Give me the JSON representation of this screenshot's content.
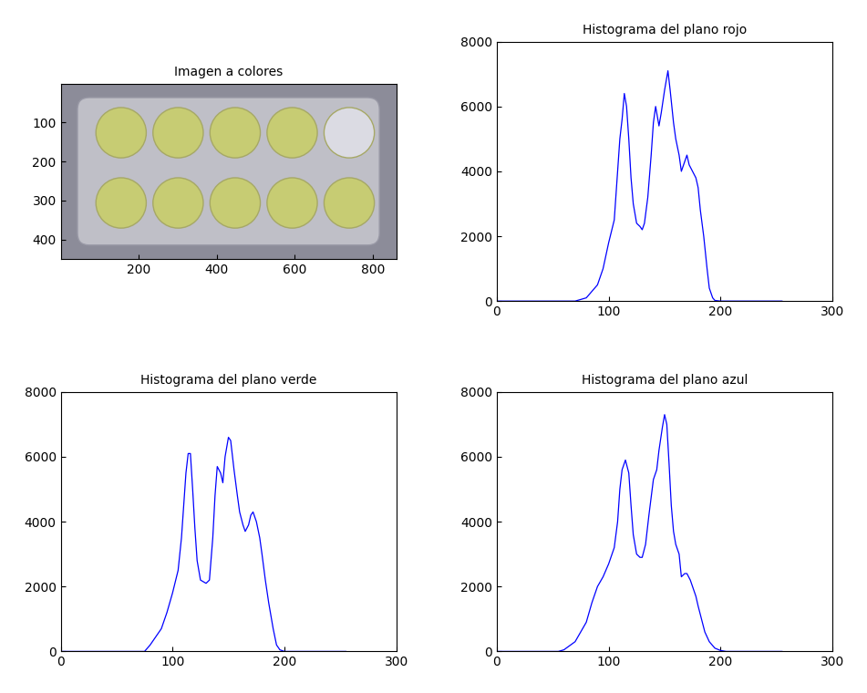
{
  "chart_data": [
    {
      "type": "image",
      "title": "Imagen a colores",
      "xlim": [
        0,
        860
      ],
      "ylim": [
        450,
        0
      ],
      "xticks": [
        200,
        400,
        600,
        800
      ],
      "yticks": [
        100,
        200,
        300,
        400
      ]
    },
    {
      "type": "line",
      "title": "Histograma del plano rojo",
      "color": "#0000ff",
      "x": [
        0,
        70,
        80,
        90,
        95,
        100,
        105,
        108,
        110,
        112,
        114,
        116,
        118,
        120,
        122,
        125,
        128,
        130,
        132,
        135,
        138,
        140,
        142,
        145,
        147,
        150,
        153,
        155,
        158,
        160,
        163,
        165,
        167,
        170,
        172,
        175,
        178,
        180,
        182,
        185,
        188,
        190,
        193,
        195,
        200,
        255
      ],
      "values": [
        0,
        0,
        100,
        500,
        1000,
        1800,
        2500,
        4000,
        5000,
        5600,
        6400,
        6000,
        5000,
        3800,
        3000,
        2400,
        2300,
        2200,
        2400,
        3200,
        4500,
        5500,
        6000,
        5400,
        5800,
        6500,
        7100,
        6500,
        5500,
        5000,
        4500,
        4000,
        4200,
        4500,
        4200,
        4000,
        3800,
        3500,
        2800,
        2000,
        1000,
        400,
        100,
        20,
        0,
        0
      ],
      "xlim": [
        0,
        300
      ],
      "ylim": [
        0,
        8000
      ],
      "xticks": [
        0,
        100,
        200,
        300
      ],
      "yticks": [
        0,
        2000,
        4000,
        6000,
        8000
      ]
    },
    {
      "type": "line",
      "title": "Histograma del plano verde",
      "color": "#0000ff",
      "x": [
        0,
        75,
        80,
        90,
        95,
        100,
        105,
        108,
        110,
        112,
        114,
        116,
        118,
        120,
        122,
        125,
        130,
        133,
        136,
        138,
        140,
        143,
        145,
        147,
        150,
        152,
        155,
        158,
        160,
        163,
        165,
        168,
        170,
        172,
        175,
        178,
        180,
        183,
        186,
        190,
        193,
        196,
        200,
        255
      ],
      "values": [
        0,
        0,
        200,
        700,
        1200,
        1800,
        2500,
        3500,
        4500,
        5500,
        6100,
        6100,
        5000,
        3800,
        2800,
        2200,
        2100,
        2200,
        3500,
        4800,
        5700,
        5500,
        5200,
        6000,
        6600,
        6500,
        5600,
        4800,
        4300,
        3900,
        3700,
        3900,
        4200,
        4300,
        4000,
        3500,
        3000,
        2200,
        1500,
        700,
        200,
        50,
        0,
        0
      ],
      "xlim": [
        0,
        300
      ],
      "ylim": [
        0,
        8000
      ],
      "xticks": [
        0,
        100,
        200,
        300
      ],
      "yticks": [
        0,
        2000,
        4000,
        6000,
        8000
      ]
    },
    {
      "type": "line",
      "title": "Histograma del plano azul",
      "color": "#0000ff",
      "x": [
        0,
        55,
        60,
        70,
        80,
        85,
        90,
        95,
        100,
        105,
        108,
        110,
        112,
        115,
        118,
        120,
        122,
        125,
        128,
        130,
        133,
        136,
        140,
        143,
        145,
        148,
        150,
        152,
        154,
        156,
        158,
        160,
        163,
        165,
        168,
        170,
        173,
        175,
        178,
        180,
        183,
        186,
        190,
        195,
        200,
        205,
        255
      ],
      "values": [
        0,
        0,
        50,
        300,
        900,
        1500,
        2000,
        2300,
        2700,
        3200,
        4000,
        5000,
        5600,
        5900,
        5500,
        4500,
        3600,
        3000,
        2900,
        2900,
        3300,
        4200,
        5300,
        5600,
        6200,
        6900,
        7300,
        7000,
        5800,
        4500,
        3700,
        3300,
        3000,
        2300,
        2400,
        2400,
        2200,
        2000,
        1700,
        1400,
        1000,
        600,
        300,
        100,
        30,
        0,
        0
      ],
      "xlim": [
        0,
        300
      ],
      "ylim": [
        0,
        8000
      ],
      "xticks": [
        0,
        100,
        200,
        300
      ],
      "yticks": [
        0,
        2000,
        4000,
        6000,
        8000
      ]
    }
  ]
}
